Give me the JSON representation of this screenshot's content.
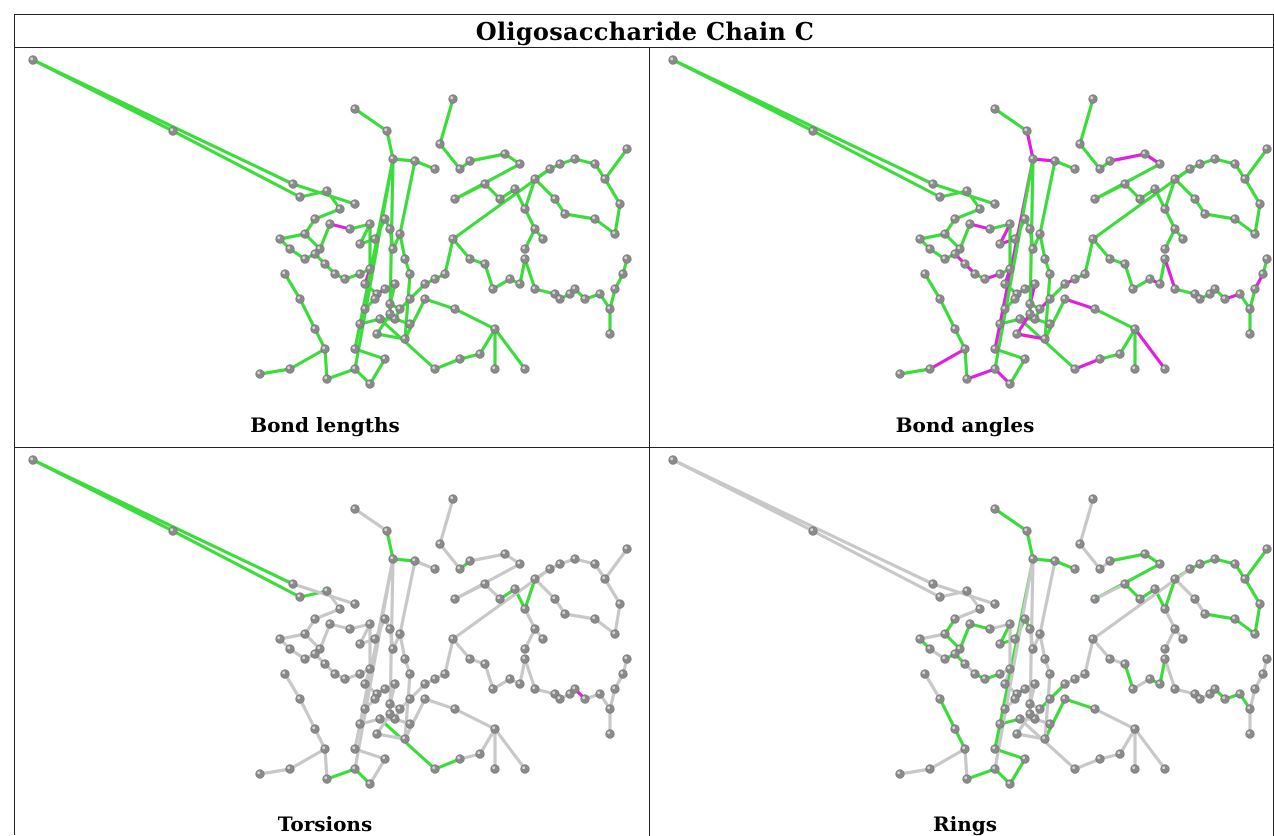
{
  "title": "Oligosaccharide Chain C",
  "colors": {
    "highlight_ok": "#3ddc3d",
    "highlight_outlier": "#e020e0",
    "bond_default": "#c8c8c8",
    "atom": "#8a8a8a"
  },
  "panels": [
    {
      "caption": "Bond lengths"
    },
    {
      "caption": "Bond angles"
    },
    {
      "caption": "Torsions"
    },
    {
      "caption": "Rings"
    }
  ]
}
